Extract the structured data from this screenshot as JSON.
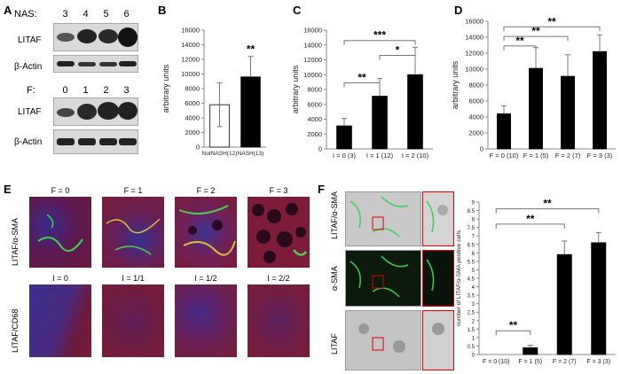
{
  "panelA": {
    "label": "A",
    "nas_label": "NAS:",
    "nas_values": [
      "3",
      "4",
      "5",
      "6"
    ],
    "f_label": "F:",
    "f_values": [
      "0",
      "1",
      "2",
      "3"
    ],
    "row1": "LITAF",
    "row2": "β-Actin",
    "row3": "LITAF",
    "row4": "β-Actin"
  },
  "chart_data": [
    {
      "id": "B",
      "type": "bar",
      "categories": [
        "NotNASH(12)",
        "NASH(13)"
      ],
      "values": [
        5800,
        9600
      ],
      "errors": [
        3000,
        2800
      ],
      "fills": [
        "#ffffff",
        "#000000"
      ],
      "ylabel": "arbitrary units",
      "ylim": [
        0,
        16000
      ],
      "yticks": [
        "0",
        "2000",
        "4000",
        "6000",
        "8000",
        "10000",
        "12000",
        "14000",
        "16000"
      ],
      "annotations": [
        {
          "text": "**",
          "bar": 1
        }
      ]
    },
    {
      "id": "C",
      "type": "bar",
      "categories": [
        "I = 0 (3)",
        "I = 1 (12)",
        "I = 2 (10)"
      ],
      "values": [
        3100,
        7100,
        10000
      ],
      "errors": [
        1000,
        2400,
        3700
      ],
      "ylabel": "arbitrary units",
      "ylim": [
        0,
        16000
      ],
      "yticks": [
        "0",
        "2000",
        "4000",
        "6000",
        "8000",
        "10000",
        "12000",
        "14000",
        "16000"
      ],
      "brackets": [
        {
          "from": 0,
          "to": 1,
          "y": 8900,
          "text": "**"
        },
        {
          "from": 1,
          "to": 2,
          "y": 12600,
          "text": "*"
        },
        {
          "from": 0,
          "to": 2,
          "y": 14600,
          "text": "***"
        }
      ]
    },
    {
      "id": "D",
      "type": "bar",
      "categories": [
        "F = 0 (10)",
        "F = 1 (5)",
        "F = 2 (7)",
        "F = 3 (3)"
      ],
      "values": [
        4400,
        10100,
        9100,
        12200
      ],
      "errors": [
        1000,
        2600,
        2700,
        2100
      ],
      "ylabel": "arbitrary units",
      "ylim": [
        0,
        16000
      ],
      "yticks": [
        "0",
        "2000",
        "4000",
        "6000",
        "8000",
        "10000",
        "12000",
        "14000",
        "16000"
      ],
      "brackets": [
        {
          "from": 0,
          "to": 1,
          "y": 12900,
          "text": "**"
        },
        {
          "from": 0,
          "to": 2,
          "y": 14100,
          "text": "**"
        },
        {
          "from": 0,
          "to": 3,
          "y": 15300,
          "text": "**"
        }
      ]
    },
    {
      "id": "F",
      "type": "bar",
      "categories": [
        "F = 0 (10)",
        "F = 1 (5)",
        "F = 2 (7)",
        "F = 3 (3)"
      ],
      "values": [
        0,
        0.4,
        5.9,
        6.6
      ],
      "errors": [
        0,
        0.15,
        0.8,
        0.6
      ],
      "ylabel": "number of LITAF/α-SMA positive cells",
      "ylim": [
        0,
        9
      ],
      "yticks": [
        "0",
        "0.5",
        "1",
        "1.5",
        "2",
        "2.5",
        "3",
        "3.5",
        "4",
        "4.5",
        "5",
        "5.5",
        "6",
        "6.5",
        "7",
        "7.5",
        "8",
        "8.5",
        "9"
      ],
      "brackets": [
        {
          "from": 0,
          "to": 1,
          "y": 1.4,
          "text": "**"
        },
        {
          "from": 0,
          "to": 2,
          "y": 7.7,
          "text": "**"
        },
        {
          "from": 0,
          "to": 3,
          "y": 8.6,
          "text": "**"
        }
      ]
    }
  ],
  "panelE": {
    "label": "E",
    "row1_label": "LITAF/α-SMA",
    "row2_label": "LITAF/CD68",
    "row1_titles": [
      "F = 0",
      "F = 1",
      "F = 2",
      "F = 3"
    ],
    "row2_titles": [
      "I = 0",
      "I = 1/1",
      "I = 1/2",
      "I = 2/2"
    ]
  },
  "panelF": {
    "label": "F",
    "row_labels": [
      "LITAF/α-SMA",
      "α-SMA",
      "LITAF"
    ]
  },
  "panel_labels": {
    "B": "B",
    "C": "C",
    "D": "D"
  }
}
